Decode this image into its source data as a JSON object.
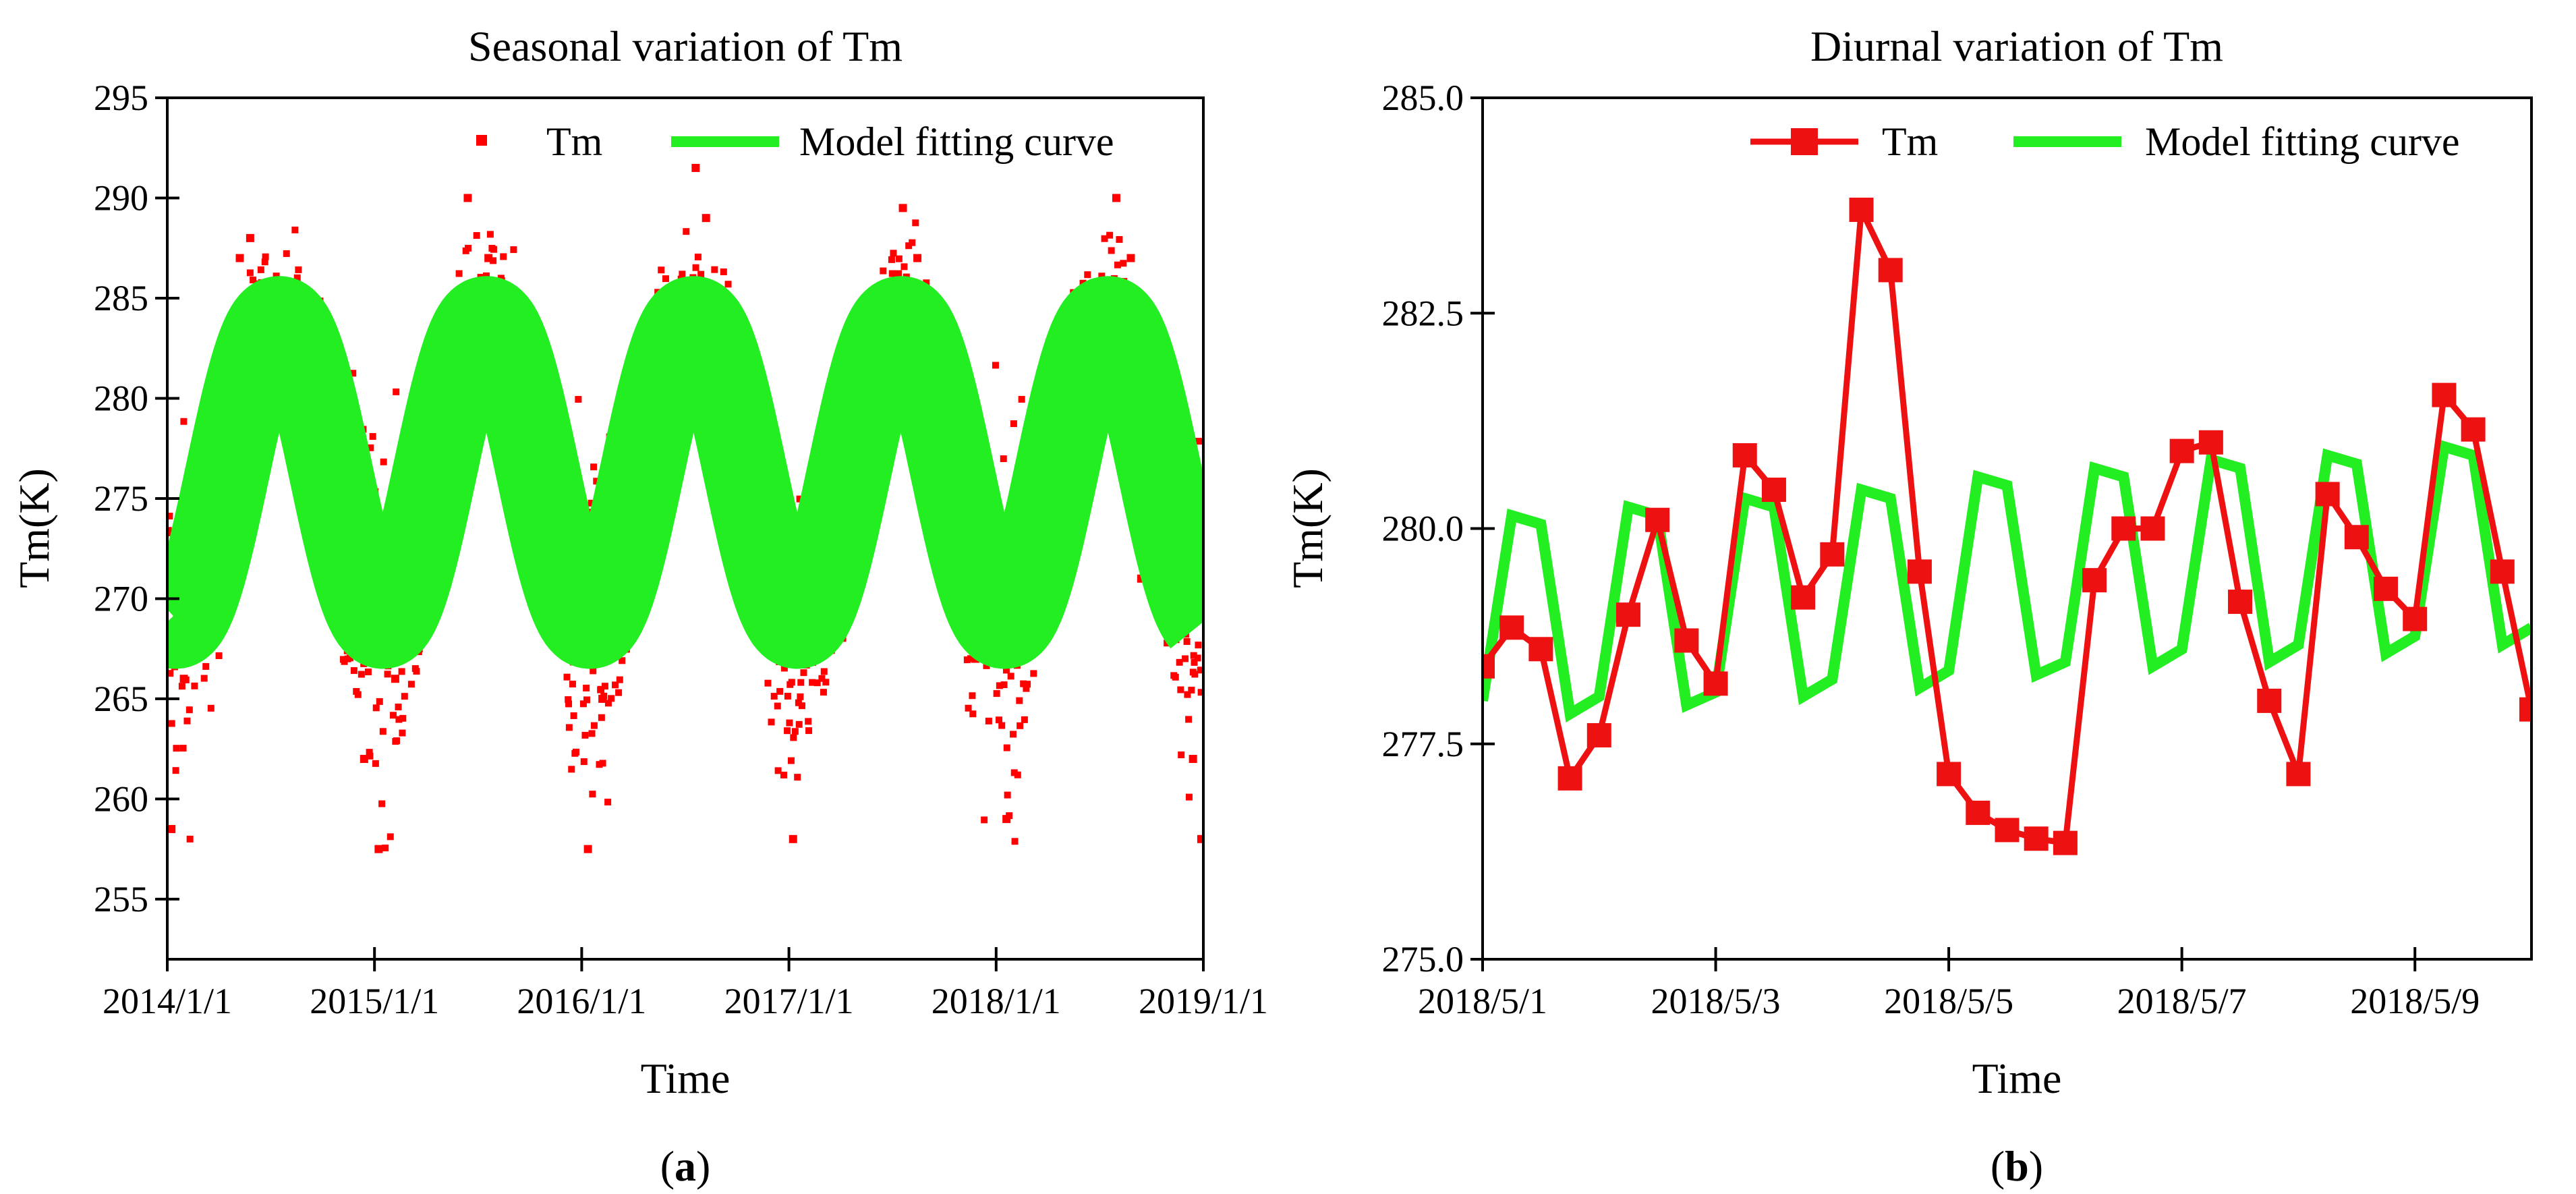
{
  "chart_data": [
    {
      "type": "scatter",
      "panel_label": "a",
      "title": "Seasonal variation of Tm",
      "xlabel": "Time",
      "ylabel": "Tm(K)",
      "x_tick_labels": [
        "2014/1/1",
        "2015/1/1",
        "2016/1/1",
        "2017/1/1",
        "2018/1/1",
        "2019/1/1"
      ],
      "x_range_years": [
        0,
        5
      ],
      "ylim": [
        252,
        295
      ],
      "y_ticks": [
        255,
        260,
        265,
        270,
        275,
        280,
        285,
        290,
        295
      ],
      "legend_position": "top-right",
      "series": [
        {
          "name": "Tm",
          "style": "scatter",
          "color": "#ff0000",
          "description_values": "daily-ish points, seasonal cycle approx 257-292 K",
          "sample_points": [
            {
              "t": 0.02,
              "y": 258.5
            },
            {
              "t": 0.03,
              "y": 272
            },
            {
              "t": 0.08,
              "y": 266
            },
            {
              "t": 0.12,
              "y": 276
            },
            {
              "t": 0.25,
              "y": 280
            },
            {
              "t": 0.35,
              "y": 287
            },
            {
              "t": 0.4,
              "y": 288
            },
            {
              "t": 0.55,
              "y": 284
            },
            {
              "t": 0.7,
              "y": 276
            },
            {
              "t": 0.95,
              "y": 262
            },
            {
              "t": 1.02,
              "y": 257.5
            },
            {
              "t": 1.1,
              "y": 266
            },
            {
              "t": 1.3,
              "y": 281
            },
            {
              "t": 1.45,
              "y": 290
            },
            {
              "t": 1.55,
              "y": 287
            },
            {
              "t": 1.75,
              "y": 275
            },
            {
              "t": 2.03,
              "y": 257.5
            },
            {
              "t": 2.1,
              "y": 265
            },
            {
              "t": 2.35,
              "y": 282
            },
            {
              "t": 2.55,
              "y": 291.5
            },
            {
              "t": 2.6,
              "y": 289
            },
            {
              "t": 2.85,
              "y": 270
            },
            {
              "t": 3.02,
              "y": 258
            },
            {
              "t": 3.2,
              "y": 270
            },
            {
              "t": 3.55,
              "y": 289.5
            },
            {
              "t": 3.62,
              "y": 287
            },
            {
              "t": 3.9,
              "y": 267
            },
            {
              "t": 4.05,
              "y": 259
            },
            {
              "t": 4.3,
              "y": 277
            },
            {
              "t": 4.58,
              "y": 290
            },
            {
              "t": 4.65,
              "y": 287
            },
            {
              "t": 4.95,
              "y": 262
            },
            {
              "t": 4.99,
              "y": 258
            },
            {
              "t": 4.7,
              "y": 271
            }
          ]
        },
        {
          "name": "Model fitting curve",
          "style": "line",
          "color": "#22ee22",
          "model": {
            "mean": 276.3,
            "amplitude": 7.7,
            "peak_fraction_of_year": 0.54,
            "band_width_k": 3.2
          }
        }
      ]
    },
    {
      "type": "line",
      "panel_label": "b",
      "title": "Diurnal variation of Tm",
      "xlabel": "Time",
      "ylabel": "Tm(K)",
      "x_tick_labels": [
        "2018/5/1",
        "2018/5/3",
        "2018/5/5",
        "2018/5/7",
        "2018/5/9"
      ],
      "x_range_days": [
        0,
        9
      ],
      "x_tick_days": [
        0,
        2,
        4,
        6,
        8
      ],
      "ylim": [
        275.0,
        285.0
      ],
      "y_tick_labels": [
        "275.0",
        "277.5",
        "280.0",
        "282.5",
        "285.0"
      ],
      "y_ticks": [
        275.0,
        277.5,
        280.0,
        282.5,
        285.0
      ],
      "legend_position": "top",
      "series": [
        {
          "name": "Tm",
          "style": "line-square-markers",
          "color": "#ee1111",
          "x": [
            0,
            0.25,
            0.5,
            0.75,
            1.0,
            1.25,
            1.5,
            1.75,
            2.0,
            2.25,
            2.5,
            2.75,
            3.0,
            3.25,
            3.5,
            3.75,
            4.0,
            4.25,
            4.5,
            4.75,
            5.0,
            5.25,
            5.5,
            5.75,
            6.0,
            6.25,
            6.5,
            6.75,
            7.0,
            7.25,
            7.5,
            7.75,
            8.0,
            8.25,
            8.5,
            8.75,
            9.0
          ],
          "values": [
            278.4,
            278.85,
            278.6,
            277.1,
            277.6,
            279.0,
            280.1,
            278.7,
            278.2,
            280.85,
            280.45,
            279.2,
            279.7,
            283.7,
            283.0,
            279.5,
            277.15,
            276.7,
            276.5,
            276.4,
            276.35,
            279.4,
            280.0,
            280.0,
            280.9,
            281.0,
            279.15,
            278.0,
            277.15,
            280.4,
            279.9,
            279.3,
            278.95,
            281.55,
            281.15,
            279.5,
            277.9
          ]
        },
        {
          "name": "Model fitting curve",
          "style": "line",
          "color": "#22ee22",
          "x": [
            0,
            0.25,
            0.5,
            0.75,
            1.0,
            1.25,
            1.5,
            1.75,
            2.0,
            2.25,
            2.5,
            2.75,
            3.0,
            3.25,
            3.5,
            3.75,
            4.0,
            4.25,
            4.5,
            4.75,
            5.0,
            5.25,
            5.5,
            5.75,
            6.0,
            6.25,
            6.5,
            6.75,
            7.0,
            7.25,
            7.5,
            7.75,
            8.0,
            8.25,
            8.5,
            8.75,
            9.0
          ],
          "values": [
            278.0,
            280.15,
            280.05,
            277.85,
            278.05,
            280.25,
            280.15,
            277.95,
            278.1,
            280.35,
            280.25,
            278.05,
            278.25,
            280.45,
            280.35,
            278.15,
            278.35,
            280.6,
            280.5,
            278.3,
            278.45,
            280.7,
            280.6,
            278.4,
            278.6,
            280.8,
            280.7,
            278.45,
            278.65,
            280.85,
            280.75,
            278.55,
            278.75,
            280.95,
            280.85,
            278.65,
            278.85
          ]
        }
      ]
    }
  ]
}
